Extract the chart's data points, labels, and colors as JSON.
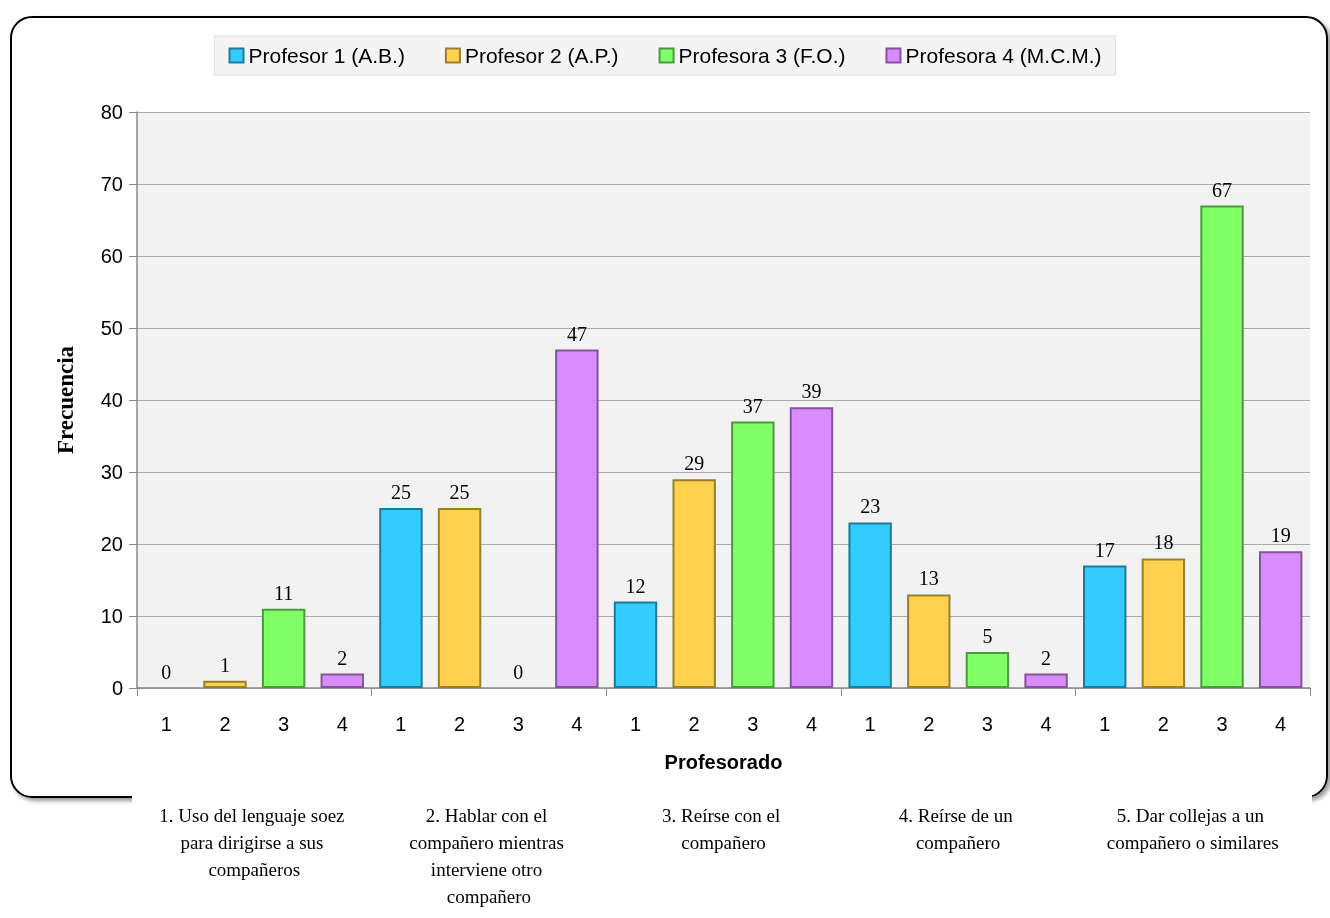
{
  "chart_data": {
    "type": "bar",
    "categories": [
      "1",
      "2",
      "3",
      "4",
      "1",
      "2",
      "3",
      "4",
      "1",
      "2",
      "3",
      "4",
      "1",
      "2",
      "3",
      "4",
      "1",
      "2",
      "3",
      "4"
    ],
    "series": [
      {
        "name": "Profesor 1 (A.B.)",
        "color": "#33ccff",
        "values": [
          0,
          null,
          null,
          null,
          25,
          null,
          null,
          null,
          12,
          null,
          null,
          null,
          23,
          null,
          null,
          null,
          17,
          null,
          null,
          null
        ]
      },
      {
        "name": "Profesor 2 (A.P.)",
        "color": "#ffd24d",
        "values": [
          null,
          1,
          null,
          null,
          null,
          25,
          null,
          null,
          null,
          29,
          null,
          null,
          null,
          13,
          null,
          null,
          null,
          18,
          null,
          null
        ]
      },
      {
        "name": "Profesora 3 (F.O.)",
        "color": "#80ff66",
        "values": [
          null,
          null,
          11,
          null,
          null,
          null,
          0,
          null,
          null,
          null,
          37,
          null,
          null,
          null,
          5,
          null,
          null,
          null,
          67,
          null
        ]
      },
      {
        "name": "Profesora 4 (M.C.M.)",
        "color": "#d98cff",
        "values": [
          null,
          null,
          null,
          2,
          null,
          null,
          null,
          47,
          null,
          null,
          null,
          39,
          null,
          null,
          null,
          2,
          null,
          null,
          null,
          19
        ]
      }
    ],
    "xlabel": "Profesorado",
    "ylabel": "Frecuencia",
    "ylim": [
      0,
      80
    ],
    "yticks": [
      0,
      10,
      20,
      30,
      40,
      50,
      60,
      70,
      80
    ],
    "grid": "y",
    "legend": "top",
    "data_labels": true,
    "annotations": [
      "1. Uso del lenguaje soez para dirigirse a sus compañeros",
      "2. Hablar con el compañero mientras interviene otro compañero",
      "3. Reírse con el compañero",
      "4. Reírse de un compañero",
      "5. Dar collejas a un compañero o similares"
    ]
  }
}
